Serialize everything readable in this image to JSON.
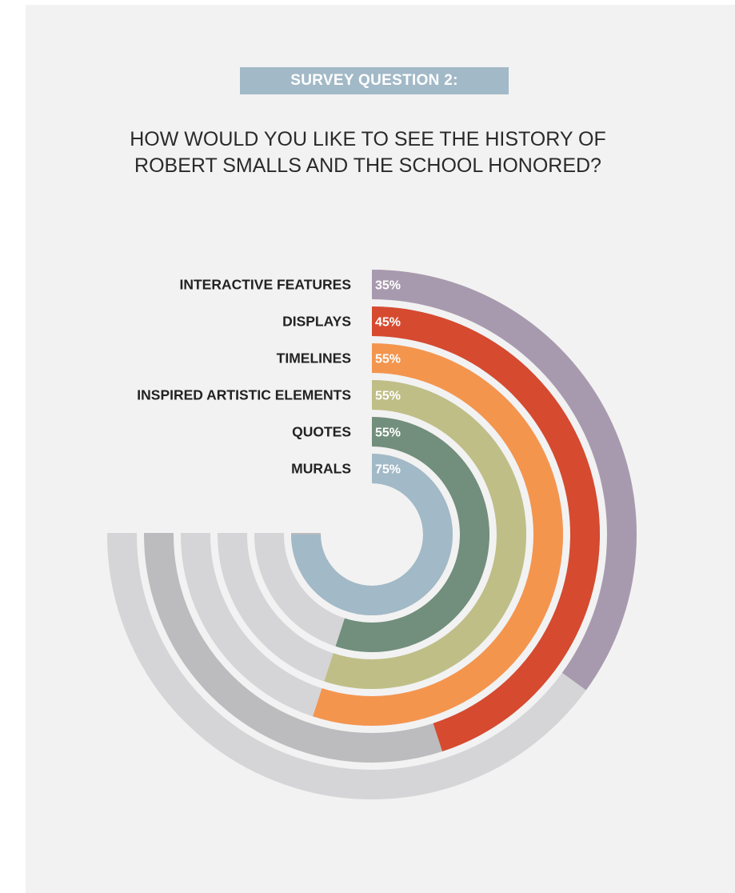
{
  "header": {
    "badge": "SURVEY QUESTION 2:",
    "question_line1": "HOW WOULD YOU LIKE TO SEE THE HISTORY OF",
    "question_line2": "ROBERT SMALLS AND THE SCHOOL HONORED?"
  },
  "chart_data": {
    "type": "radial-bar",
    "title": "HOW WOULD YOU LIKE TO SEE THE HISTORY OF ROBERT SMALLS AND THE SCHOOL HONORED?",
    "value_unit": "%",
    "categories": [
      "INTERACTIVE FEATURES",
      "DISPLAYS",
      "TIMELINES",
      "INSPIRED ARTISTIC ELEMENTS",
      "QUOTES",
      "MURALS"
    ],
    "values": [
      35,
      45,
      55,
      55,
      55,
      75
    ],
    "value_labels": [
      "35%",
      "45%",
      "55%",
      "55%",
      "55%",
      "75%"
    ],
    "colors": [
      "#a89aae",
      "#d64a30",
      "#f4954e",
      "#bfbe86",
      "#728e7c",
      "#a2b9c7"
    ],
    "track_colors": [
      "#d5d5d7",
      "#bcbcbe",
      "#d5d5d7",
      "#d5d5d7",
      "#d5d5d7",
      "#bcbcbe"
    ]
  }
}
